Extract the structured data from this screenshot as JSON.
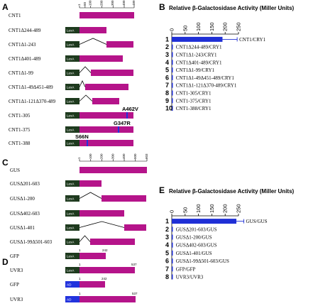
{
  "panels": {
    "A": "A",
    "B": "B",
    "C": "C",
    "D": "D",
    "E": "E"
  },
  "colors": {
    "protein": "#b5148a",
    "lexa": "#1e3a1e",
    "ad": "#2233dd",
    "bar": "#1f2fd6",
    "mutation": "#2233dd"
  },
  "diagram_A": {
    "full": {
      "name": "CNT1",
      "ticks": [
        "1",
        "50",
        "100",
        "200",
        "300",
        "400",
        "489"
      ]
    },
    "rows": [
      {
        "name": "CNT1Δ244-489",
        "tag": "LexA"
      },
      {
        "name": "CNT1Δ1-243",
        "tag": "LexA"
      },
      {
        "name": "CNT1Δ401-489",
        "tag": "LexA"
      },
      {
        "name": "CNT1Δ1-99",
        "tag": "LexA"
      },
      {
        "name": "CNT1Δ1-49Δ451-489",
        "tag": "LexA"
      },
      {
        "name": "CNT1Δ1-121Δ370-489",
        "tag": "LexA"
      },
      {
        "name": "CNT1-305",
        "tag": "LexA",
        "mutation": "A462V"
      },
      {
        "name": "CNT1-375",
        "tag": "LexA",
        "mutation": "G347R"
      },
      {
        "name": "CNT1-388",
        "tag": "LexA",
        "mutation": "S66N"
      }
    ]
  },
  "diagram_C": {
    "full": {
      "name": "GUS",
      "ticks": [
        "1",
        "100",
        "200",
        "300",
        "400",
        "500",
        "603"
      ]
    },
    "rows": [
      {
        "name": "GUSΔ201-603",
        "tag": "LexA"
      },
      {
        "name": "GUSΔ1-200",
        "tag": "LexA"
      },
      {
        "name": "GUSΔ402-603",
        "tag": "LexA"
      },
      {
        "name": "GUSΔ1-401",
        "tag": "LexA"
      },
      {
        "name": "GUSΔ1-99Δ501-603",
        "tag": "LexA"
      },
      {
        "name": "GFP",
        "tag": "LexA",
        "start": "1",
        "end": "242"
      },
      {
        "name": "UVR3",
        "tag": "LexA",
        "start": "1",
        "end": "537"
      }
    ]
  },
  "diagram_D": {
    "rows": [
      {
        "name": "GFP",
        "tag": "AD",
        "start": "1",
        "end": "242"
      },
      {
        "name": "UVR3",
        "tag": "AD",
        "start": "1",
        "end": "537"
      }
    ]
  },
  "chart_data": [
    {
      "type": "bar",
      "title": "Relative β-Galactosidase Activity (Miller Units)",
      "orientation": "horizontal",
      "xlim": [
        0,
        250
      ],
      "xticks": [
        "0",
        "50",
        "100",
        "150",
        "200",
        "250"
      ],
      "indices": [
        "1",
        "2",
        "3",
        "4",
        "5",
        "6",
        "7",
        "8",
        "9",
        "10"
      ],
      "categories": [
        "CNT1/CRY1",
        "CNT1Δ244-489/CRY1",
        "CNT1Δ1-243/CRY1",
        "CNT1Δ401-489/CRY1",
        "CNT1Δ1-99/CRY1",
        "CNT1Δ1-49Δ451-489/CRY1",
        "CNT1Δ1-121Δ370-489/CRY1",
        "CNT1-305/CRY1",
        "CNT1-375/CRY1",
        "CNT1-388/CRY1"
      ],
      "values": [
        190,
        2,
        2,
        2,
        2,
        2,
        2,
        2,
        2,
        2
      ],
      "errors": [
        55,
        0,
        0,
        0,
        0,
        0,
        0,
        0,
        0,
        0
      ]
    },
    {
      "type": "bar",
      "title": "Relative β-Galactosidase Activity (Miller Units)",
      "orientation": "horizontal",
      "xlim": [
        0,
        250
      ],
      "xticks": [
        "0",
        "50",
        "100",
        "150",
        "200",
        "250"
      ],
      "indices": [
        "1",
        "2",
        "3",
        "4",
        "5",
        "6",
        "7",
        "8"
      ],
      "categories": [
        "GUS/GUS",
        "GUSΔ201-603/GUS",
        "GUSΔ1-200/GUS",
        "GUSΔ402-603/GUS",
        "GUSΔ1-401/GUS",
        "GUSΔ1-99Δ501-603/GUS",
        "GFP/GFP",
        "UVR3/UVR3"
      ],
      "values": [
        242,
        2,
        2,
        2,
        2,
        2,
        2,
        2
      ],
      "errors": [
        28,
        0,
        0,
        0,
        0,
        0,
        0,
        0
      ]
    }
  ]
}
